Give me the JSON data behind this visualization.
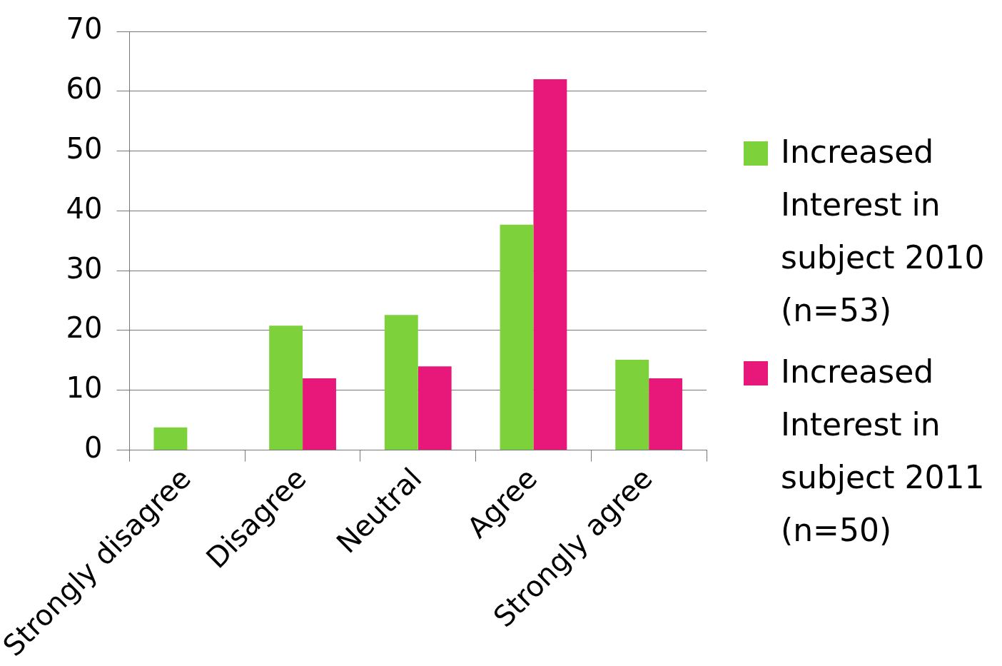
{
  "chart_data": {
    "type": "bar",
    "categories": [
      "Strongly disagree",
      "Disagree",
      "Neutral",
      "Agree",
      "Strongly agree"
    ],
    "series": [
      {
        "name": "Increased Interest in subject 2010 (n=53)",
        "color": "#7dd23c",
        "values": [
          3.8,
          20.8,
          22.6,
          37.7,
          15.1
        ]
      },
      {
        "name": "Increased Interest in subject 2011 (n=50)",
        "color": "#e8177a",
        "values": [
          0,
          12,
          14,
          62,
          12
        ]
      }
    ],
    "ylim": [
      0,
      70
    ],
    "yticks": [
      0,
      10,
      20,
      30,
      40,
      50,
      60,
      70
    ],
    "grid": "y",
    "legend": "right"
  }
}
